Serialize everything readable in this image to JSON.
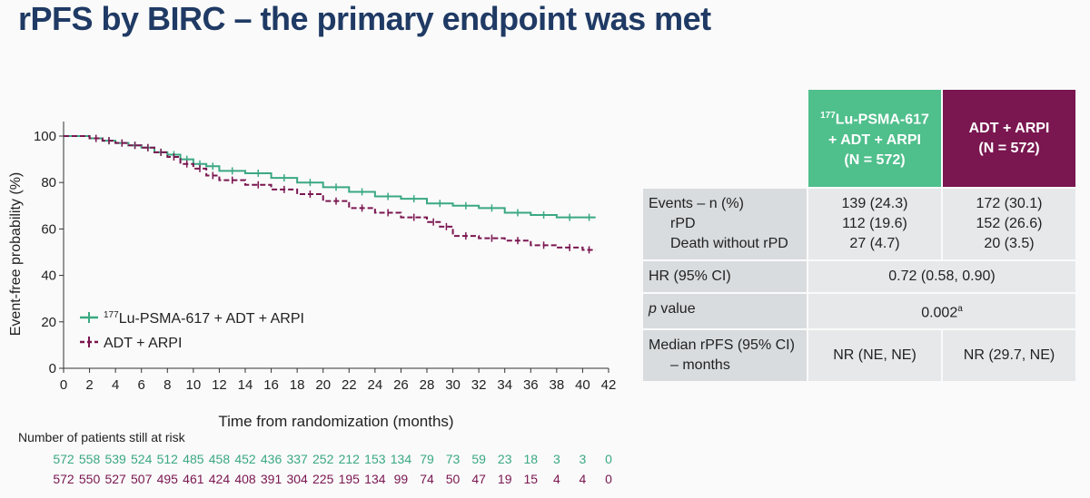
{
  "slide_title": "rPFS by BIRC – the primary endpoint was met",
  "chart_data": {
    "type": "line",
    "subtype": "kaplan-meier",
    "xlabel": "Time from randomization (months)",
    "ylabel": "Event-free probability (%)",
    "xlim": [
      0,
      42
    ],
    "ylim": [
      0,
      100
    ],
    "xticks": [
      0,
      2,
      4,
      6,
      8,
      10,
      12,
      14,
      16,
      18,
      20,
      22,
      24,
      26,
      28,
      30,
      32,
      34,
      36,
      38,
      40,
      42
    ],
    "yticks": [
      0,
      20,
      40,
      60,
      80,
      100
    ],
    "legend_position": "bottom-left",
    "series": [
      {
        "name_sup": "177",
        "name_rest": "Lu-PSMA-617 + ADT + ARPI",
        "color": "#3aa882",
        "style": "solid",
        "x": [
          0,
          2,
          3,
          4,
          5,
          6,
          7,
          8,
          9,
          10,
          11,
          12,
          14,
          16,
          18,
          20,
          22,
          24,
          26,
          28,
          30,
          32,
          34,
          36,
          38,
          40,
          41
        ],
        "y": [
          100,
          99,
          98,
          97,
          96,
          95,
          93,
          92,
          90,
          88,
          87,
          85,
          84,
          82,
          80,
          78,
          76,
          74,
          73,
          71,
          70,
          69,
          67,
          66,
          65,
          65,
          65
        ]
      },
      {
        "name": "ADT + ARPI",
        "color": "#7a1650",
        "style": "dashed",
        "x": [
          0,
          2,
          3,
          4,
          5,
          6,
          7,
          8,
          9,
          10,
          11,
          12,
          14,
          16,
          18,
          20,
          22,
          24,
          26,
          28,
          29,
          30,
          32,
          34,
          36,
          38,
          40,
          41
        ],
        "y": [
          100,
          99,
          98,
          97,
          96,
          95,
          93,
          91,
          88,
          86,
          83,
          81,
          79,
          77,
          75,
          72,
          69,
          67,
          65,
          63,
          61,
          57,
          56,
          55,
          53,
          52,
          51,
          51
        ]
      }
    ]
  },
  "risk_table": {
    "header": "Number of patients still at risk",
    "lu_psma": [
      "572",
      "558",
      "539",
      "524",
      "512",
      "485",
      "458",
      "452",
      "436",
      "337",
      "252",
      "212",
      "153",
      "134",
      "79",
      "73",
      "59",
      "23",
      "18",
      "3",
      "3",
      "0"
    ],
    "adt_arpi": [
      "572",
      "550",
      "527",
      "507",
      "495",
      "461",
      "424",
      "408",
      "391",
      "304",
      "225",
      "195",
      "134",
      "99",
      "74",
      "50",
      "47",
      "19",
      "15",
      "4",
      "4",
      "0"
    ]
  },
  "summary_table": {
    "col1_sup": "177",
    "col1_line1": "Lu-PSMA-617",
    "col1_line2": "+ ADT + ARPI",
    "col1_line3": "(N = 572)",
    "col2_line1": "ADT + ARPI",
    "col2_line2": "(N = 572)",
    "events_label": "Events – n (%)",
    "rpd_label": "rPD",
    "death_label": "Death without rPD",
    "events_lu": "139 (24.3)",
    "rpd_lu": "112 (19.6)",
    "death_lu": "27 (4.7)",
    "events_adt": "172 (30.1)",
    "rpd_adt": "152 (26.6)",
    "death_adt": "20 (3.5)",
    "hr_label": "HR (95% CI)",
    "hr_value": "0.72 (0.58, 0.90)",
    "p_label_italic": "p",
    "p_label_rest": " value",
    "p_value": "0.002",
    "p_value_sup": "a",
    "median_label_line1": "Median rPFS (95% CI)",
    "median_label_line2": "– months",
    "median_lu": "NR (NE, NE)",
    "median_adt": "NR (29.7, NE)"
  }
}
